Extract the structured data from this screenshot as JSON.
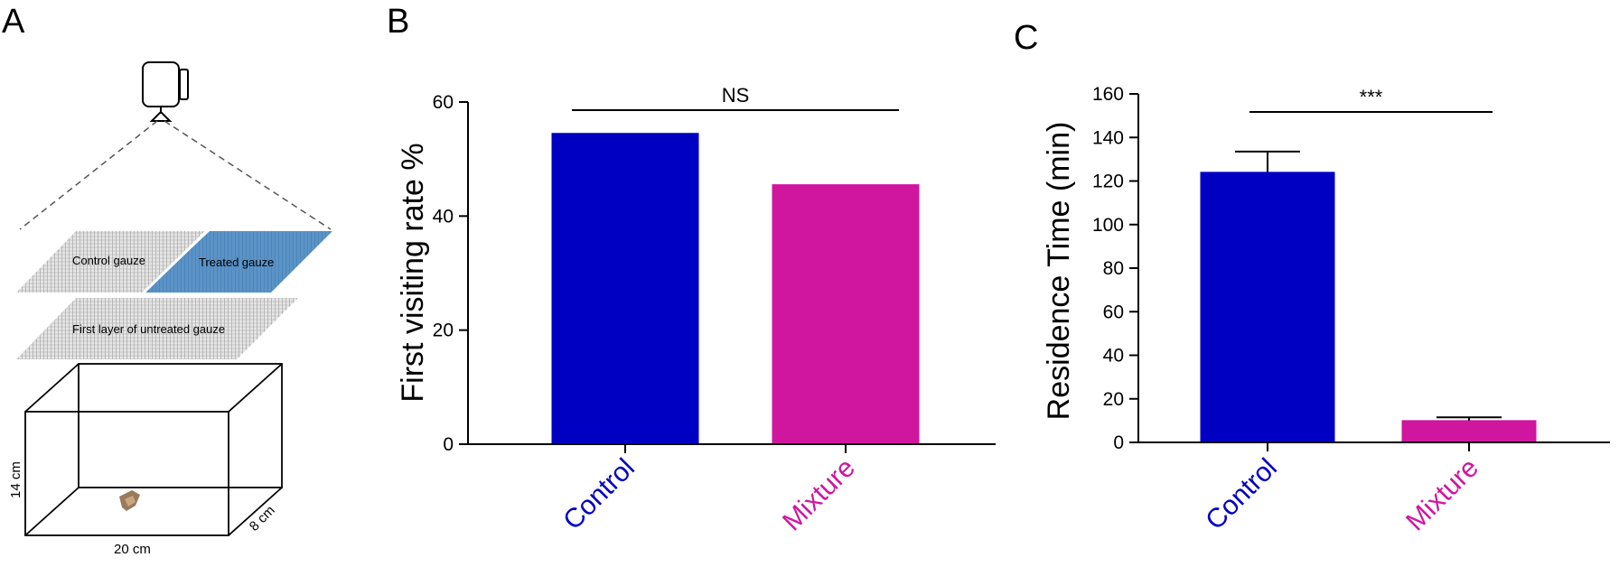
{
  "panels": {
    "a": {
      "letter": "A",
      "control_gauze": "Control gauze",
      "treated_gauze": "Treated gauze",
      "first_layer": "First layer of untreated gauze",
      "height": "14 cm",
      "width": "20 cm",
      "depth": "8 cm"
    },
    "b": {
      "letter": "B"
    },
    "c": {
      "letter": "C"
    }
  },
  "colors": {
    "control": "#0000C2",
    "mixture": "#D0159F",
    "gauze": "#BDBDBD",
    "treated": "#5B93C7"
  },
  "chart_data": [
    {
      "type": "bar",
      "categories": [
        "Control",
        "Mixture"
      ],
      "values": [
        54.5,
        45.5
      ],
      "colors": [
        "#0000C2",
        "#D0159F"
      ],
      "xlabel": "",
      "ylabel": "First visiting rate %",
      "ylim": [
        0,
        60
      ],
      "yticks": [
        0,
        20,
        40,
        60
      ],
      "significance": "NS",
      "grid": false
    },
    {
      "type": "bar",
      "categories": [
        "Control",
        "Mixture"
      ],
      "values": [
        124,
        10
      ],
      "errors": [
        9.5,
        1.5
      ],
      "colors": [
        "#0000C2",
        "#D0159F"
      ],
      "xlabel": "",
      "ylabel": "Residence Time (min)",
      "ylim": [
        0,
        160
      ],
      "yticks": [
        0,
        20,
        40,
        60,
        80,
        100,
        120,
        140,
        160
      ],
      "significance": "***",
      "grid": false
    }
  ]
}
